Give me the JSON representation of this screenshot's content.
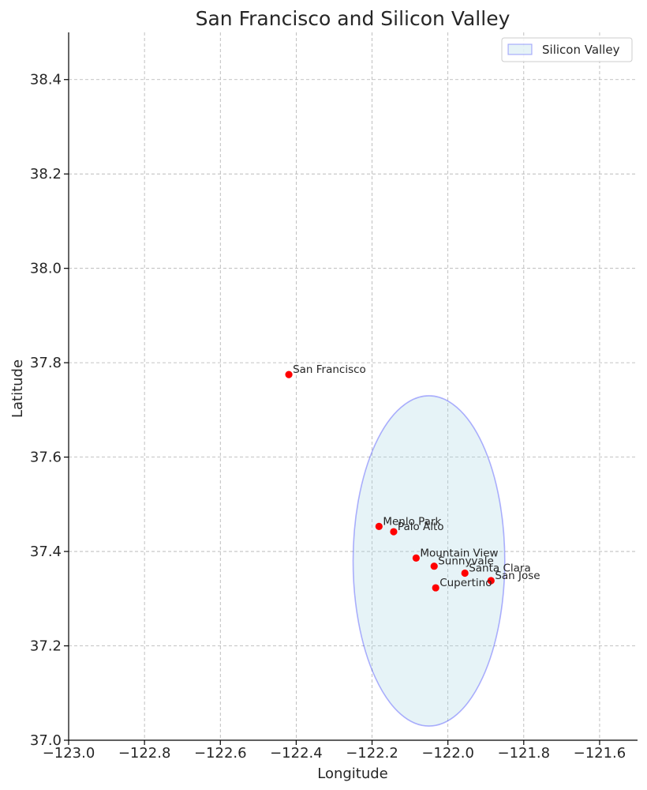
{
  "chart_data": {
    "type": "scatter",
    "title": "San Francisco and Silicon Valley",
    "xlabel": "Longitude",
    "ylabel": "Latitude",
    "xlim": [
      -123.0,
      -121.5
    ],
    "ylim": [
      37.0,
      38.5
    ],
    "xticks": [
      -123.0,
      -122.8,
      -122.6,
      -122.4,
      -122.2,
      -122.0,
      -121.8,
      -121.6
    ],
    "xtick_labels": [
      "−123.0",
      "−122.8",
      "−122.6",
      "−122.4",
      "−122.2",
      "−122.0",
      "−121.8",
      "−121.6"
    ],
    "yticks": [
      37.0,
      37.2,
      37.4,
      37.6,
      37.8,
      38.0,
      38.2,
      38.4
    ],
    "ytick_labels": [
      "37.0",
      "37.2",
      "37.4",
      "37.6",
      "37.8",
      "38.0",
      "38.2",
      "38.4"
    ],
    "grid": true,
    "legend": {
      "position": "top-right",
      "entries": [
        {
          "label": "Silicon Valley"
        }
      ]
    },
    "region": {
      "name": "Silicon Valley",
      "shape": "ellipse",
      "center": [
        -122.05,
        37.38
      ],
      "width_deg": 0.4,
      "height_deg": 0.7,
      "fill": "#add8e6",
      "edge": "#0000ff"
    },
    "point_color": "#ff0000",
    "points": [
      {
        "label": "San Francisco",
        "x": -122.4194,
        "y": 37.7749
      },
      {
        "label": "Menlo Park",
        "x": -122.1817,
        "y": 37.453
      },
      {
        "label": "Palo Alto",
        "x": -122.143,
        "y": 37.4419
      },
      {
        "label": "Mountain View",
        "x": -122.0838,
        "y": 37.3861
      },
      {
        "label": "Sunnyvale",
        "x": -122.0363,
        "y": 37.3688
      },
      {
        "label": "Santa Clara",
        "x": -121.9552,
        "y": 37.3541
      },
      {
        "label": "San Jose",
        "x": -121.8863,
        "y": 37.3382
      },
      {
        "label": "Cupertino",
        "x": -122.0322,
        "y": 37.323
      }
    ]
  }
}
